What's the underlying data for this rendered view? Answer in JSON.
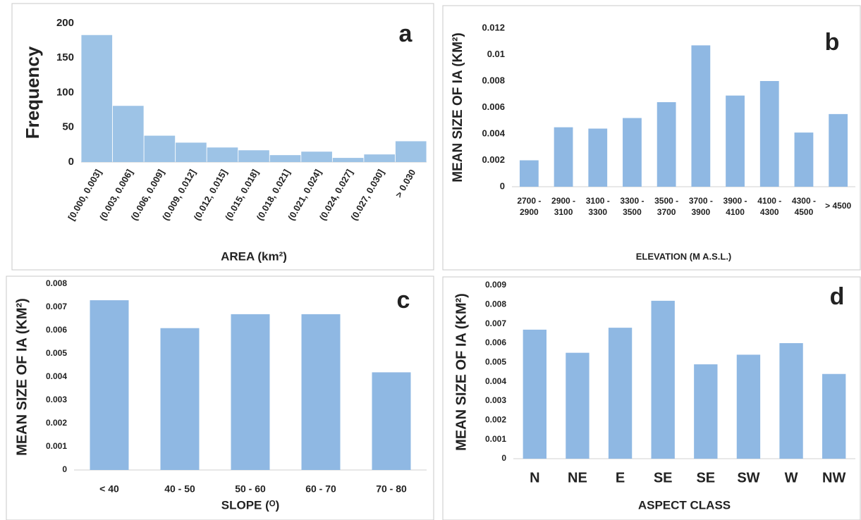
{
  "chart_data": [
    {
      "type": "bar",
      "label": "a",
      "ylabel": "Frequency",
      "xlabel": "AREA (km²)",
      "categories": [
        "[0.000, 0.003]",
        "(0.003, 0.006]",
        "(0.006, 0.009]",
        "(0.009, 0.012]",
        "(0.012, 0.015]",
        "(0.015, 0.018]",
        "(0.018, 0.021]",
        "(0.021, 0.024]",
        "(0.024, 0.027]",
        "(0.027, 0.030]",
        "> 0.030"
      ],
      "values": [
        183,
        81,
        38,
        28,
        21,
        17,
        10,
        15,
        6,
        11,
        30
      ],
      "color": "#9dc3e6",
      "ylim": [
        0,
        200
      ],
      "yticks": [
        0,
        50,
        100,
        150,
        200
      ]
    },
    {
      "type": "bar",
      "label": "b",
      "ylabel": "MEAN SIZE OF IA (KM²)",
      "xlabel": "ELEVATION (M A.S.L.)",
      "categories": [
        "2700 -\n2900",
        "2900 -\n3100",
        "3100 -\n3300",
        "3300 -\n3500",
        "3500 -\n3700",
        "3700 -\n3900",
        "3900 -\n4100",
        "4100 -\n4300",
        "4300 -\n4500",
        "> 4500"
      ],
      "values": [
        0.002,
        0.0045,
        0.0044,
        0.0052,
        0.0064,
        0.0107,
        0.0069,
        0.008,
        0.0041,
        0.0055
      ],
      "color": "#8fb8e3",
      "ylim": [
        0,
        0.012
      ],
      "yticks": [
        0,
        0.002,
        0.004,
        0.006,
        0.008,
        0.01,
        0.012
      ]
    },
    {
      "type": "bar",
      "label": "c",
      "ylabel": "MEAN SIZE OF IA (KM²)",
      "xlabel": "SLOPE (ᴼ)",
      "categories": [
        "< 40",
        "40 - 50",
        "50 - 60",
        "60 - 70",
        "70 - 80"
      ],
      "values": [
        0.0073,
        0.0061,
        0.0067,
        0.0067,
        0.0042
      ],
      "color": "#8fb8e3",
      "ylim": [
        0,
        0.008
      ],
      "yticks": [
        0,
        0.001,
        0.002,
        0.003,
        0.004,
        0.005,
        0.006,
        0.007,
        0.008
      ]
    },
    {
      "type": "bar",
      "label": "d",
      "ylabel": "MEAN SIZE OF IA (KM²)",
      "xlabel": "ASPECT CLASS",
      "categories": [
        "N",
        "NE",
        "E",
        "SE",
        "SE",
        "SW",
        "W",
        "NW"
      ],
      "values": [
        0.0067,
        0.0055,
        0.0068,
        0.0082,
        0.0049,
        0.0054,
        0.006,
        0.0044
      ],
      "color": "#8fb8e3",
      "ylim": [
        0,
        0.009
      ],
      "yticks": [
        0,
        0.001,
        0.002,
        0.003,
        0.004,
        0.005,
        0.006,
        0.007,
        0.008,
        0.009
      ]
    }
  ]
}
